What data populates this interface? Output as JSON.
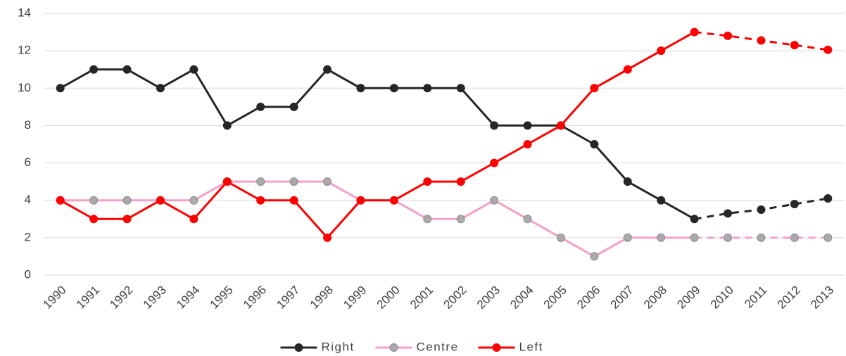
{
  "chart_data": {
    "type": "line",
    "categories": [
      "1990",
      "1991",
      "1992",
      "1993",
      "1994",
      "1995",
      "1996",
      "1997",
      "1998",
      "1999",
      "2000",
      "2001",
      "2002",
      "2003",
      "2004",
      "2005",
      "2006",
      "2007",
      "2008",
      "2009",
      "2010",
      "2011",
      "2012",
      "2013"
    ],
    "series": [
      {
        "name": "Right",
        "color": "#262626",
        "marker_fill": "#262626",
        "values": [
          10,
          11,
          11,
          10,
          11,
          8,
          9,
          9,
          11,
          10,
          10,
          10,
          10,
          8,
          8,
          8,
          7,
          5,
          4,
          3,
          3.3,
          3.5,
          3.8,
          4.1
        ]
      },
      {
        "name": "Centre",
        "color": "#f4a0c8",
        "marker_fill": "#aaaaaa",
        "values": [
          4,
          4,
          4,
          4,
          4,
          5,
          5,
          5,
          5,
          4,
          4,
          3,
          3,
          4,
          3,
          2,
          1,
          2,
          2,
          2,
          2,
          2,
          2,
          2
        ]
      },
      {
        "name": "Left",
        "color": "#ff0000",
        "marker_fill": "#ff0000",
        "values": [
          4,
          3,
          3,
          4,
          3,
          5,
          4,
          4,
          2,
          4,
          4,
          5,
          5,
          6,
          7,
          8,
          10,
          11,
          12,
          13,
          12.8,
          12.55,
          12.3,
          12.05
        ]
      }
    ],
    "dashed_from": "2010",
    "ylim": [
      0,
      14
    ],
    "yticks": [
      0,
      2,
      4,
      6,
      8,
      10,
      12,
      14
    ],
    "grid": true,
    "legend": "bottom"
  }
}
